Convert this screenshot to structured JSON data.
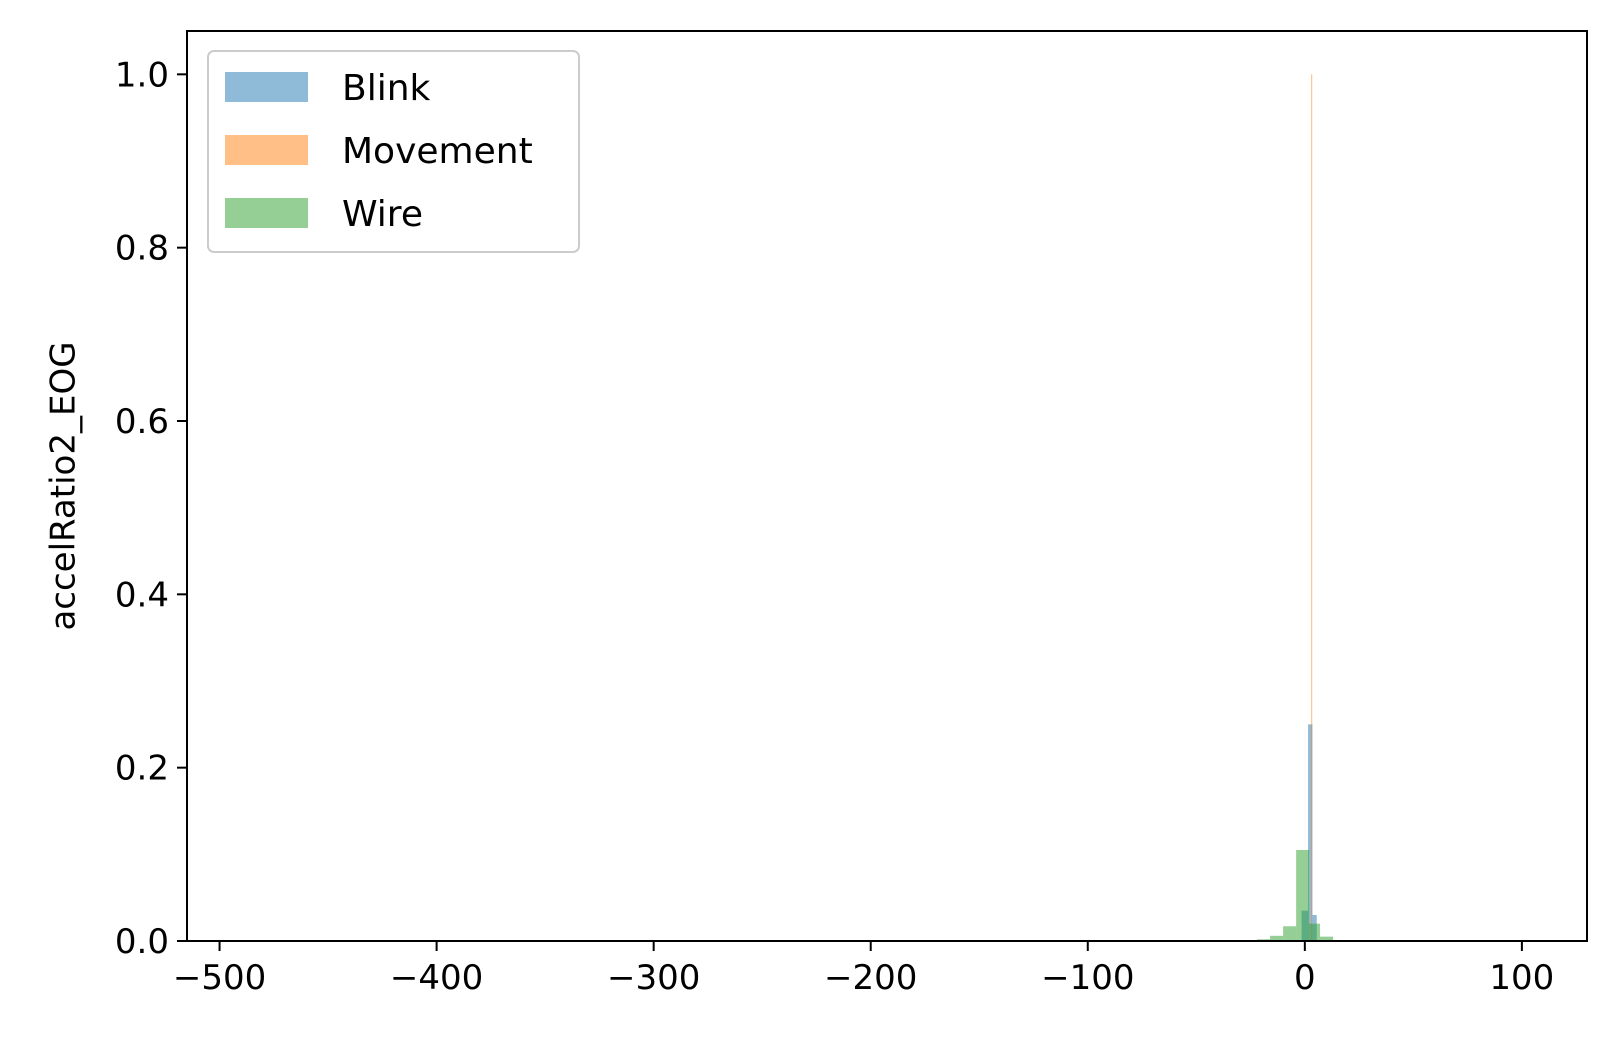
{
  "chart_data": {
    "type": "bar",
    "title": "",
    "xlabel": "",
    "ylabel": "accelRatio2_EOG",
    "xlim": [
      -515,
      130
    ],
    "ylim": [
      0,
      1.05
    ],
    "xticks": [
      -500,
      -400,
      -300,
      -200,
      -100,
      0,
      100
    ],
    "xtick_labels": [
      "−500",
      "−400",
      "−300",
      "−200",
      "−100",
      "0",
      "100"
    ],
    "yticks": [
      0.0,
      0.2,
      0.4,
      0.6,
      0.8,
      1.0
    ],
    "ytick_labels": [
      "0.0",
      "0.2",
      "0.4",
      "0.6",
      "0.8",
      "1.0"
    ],
    "grid": false,
    "legend_position": "upper-left",
    "alpha": 0.5,
    "series": [
      {
        "name": "Blink",
        "color": "#1f77b4",
        "bins": [
          {
            "x0": -1.5,
            "x1": 1.5,
            "y": 0.035
          },
          {
            "x0": 1.5,
            "x1": 3.5,
            "y": 0.25
          },
          {
            "x0": 3.5,
            "x1": 5.5,
            "y": 0.03
          }
        ]
      },
      {
        "name": "Movement",
        "color": "#ff7f0e",
        "bins": [
          {
            "x0": 2.9,
            "x1": 3.4,
            "y": 1.0
          }
        ]
      },
      {
        "name": "Wire",
        "color": "#2ca02c",
        "bins": [
          {
            "x0": -33,
            "x1": -28,
            "y": 0.001
          },
          {
            "x0": -22,
            "x1": -16,
            "y": 0.002
          },
          {
            "x0": -16,
            "x1": -10,
            "y": 0.006
          },
          {
            "x0": -10,
            "x1": -4,
            "y": 0.017
          },
          {
            "x0": -4,
            "x1": 2,
            "y": 0.105
          },
          {
            "x0": 2,
            "x1": 7,
            "y": 0.02
          },
          {
            "x0": 7,
            "x1": 13,
            "y": 0.005
          },
          {
            "x0": 31,
            "x1": 36,
            "y": 0.001
          }
        ]
      }
    ]
  }
}
